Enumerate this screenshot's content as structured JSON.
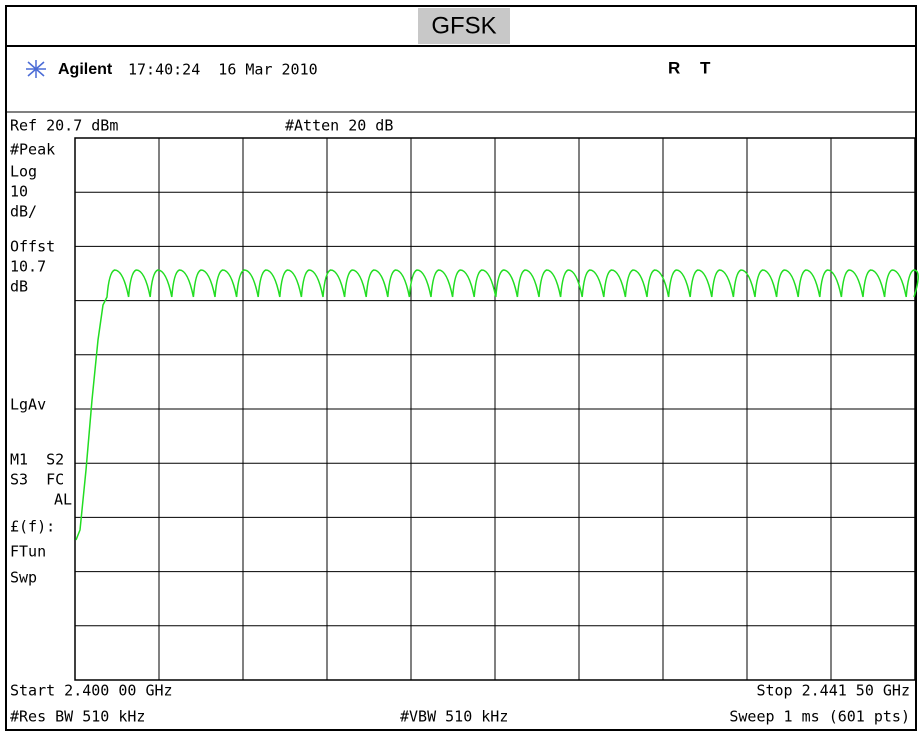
{
  "title": "GFSK",
  "header": {
    "brand": "Agilent",
    "timestamp": "17:40:24  16 Mar 2010",
    "status": [
      "R",
      "T"
    ]
  },
  "settings": {
    "ref": "Ref 20.7 dBm",
    "atten": "#Atten 20 dB"
  },
  "side_labels": [
    "#Peak",
    "Log",
    "10",
    "dB/",
    "Offst",
    "10.7",
    "dB",
    "LgAv",
    "M1  S2",
    "S3  FC",
    "AL",
    "£(f):",
    "FTun",
    "Swp"
  ],
  "footer": {
    "start": "Start 2.400 00 GHz",
    "stop": "Stop 2.441 50 GHz",
    "res_bw": "#Res BW 510 kHz",
    "vbw": "#VBW 510 kHz",
    "sweep": "Sweep 1 ms (601 pts)"
  }
}
